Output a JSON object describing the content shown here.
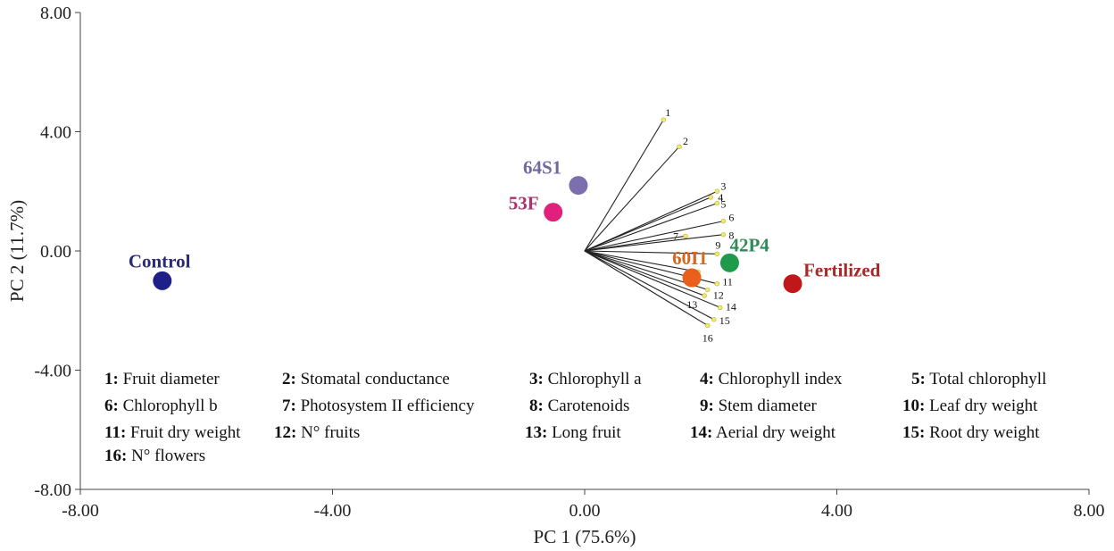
{
  "chart_data": {
    "type": "scatter",
    "subtype": "pca-biplot",
    "xlabel": "PC 1 (75.6%)",
    "ylabel": "PC 2 (11.7%)",
    "xlim": [
      -8,
      8
    ],
    "ylim": [
      -8,
      8
    ],
    "xticks": [
      "-8.00",
      "-4.00",
      "0.00",
      "4.00",
      "8.00"
    ],
    "yticks": [
      "8.00",
      "4.00",
      "0.00",
      "-4.00",
      "-8.00"
    ],
    "points": [
      {
        "label": "Control",
        "x": -6.7,
        "y": -1.0,
        "color": "#1f1f8a",
        "label_color": "#2a2a7a"
      },
      {
        "label": "64S1",
        "x": -0.1,
        "y": 2.2,
        "color": "#7b6fb0",
        "label_color": "#6e6aa0"
      },
      {
        "label": "53F",
        "x": -0.5,
        "y": 1.3,
        "color": "#e0207a",
        "label_color": "#b0306a"
      },
      {
        "label": "42P4",
        "x": 2.3,
        "y": -0.4,
        "color": "#1e9a4a",
        "label_color": "#2e8b57"
      },
      {
        "label": "60I1",
        "x": 1.7,
        "y": -0.9,
        "color": "#e8601c",
        "label_color": "#d2691e"
      },
      {
        "label": "Fertilized",
        "x": 3.3,
        "y": -1.1,
        "color": "#c01818",
        "label_color": "#a52a2a"
      }
    ],
    "vectors": [
      {
        "id": "1",
        "x": 1.25,
        "y": 4.4
      },
      {
        "id": "2",
        "x": 1.5,
        "y": 3.5
      },
      {
        "id": "3",
        "x": 2.1,
        "y": 2.0
      },
      {
        "id": "4",
        "x": 2.0,
        "y": 1.8
      },
      {
        "id": "5",
        "x": 2.1,
        "y": 1.6
      },
      {
        "id": "6",
        "x": 2.2,
        "y": 1.0
      },
      {
        "id": "7",
        "x": 1.6,
        "y": 0.5
      },
      {
        "id": "8",
        "x": 2.2,
        "y": 0.55
      },
      {
        "id": "9",
        "x": 2.1,
        "y": -0.1
      },
      {
        "id": "10",
        "x": 1.8,
        "y": -0.7
      },
      {
        "id": "11",
        "x": 2.1,
        "y": -1.1
      },
      {
        "id": "12",
        "x": 1.95,
        "y": -1.3
      },
      {
        "id": "13",
        "x": 1.9,
        "y": -1.5
      },
      {
        "id": "14",
        "x": 2.15,
        "y": -1.9
      },
      {
        "id": "15",
        "x": 2.05,
        "y": -2.3
      },
      {
        "id": "16",
        "x": 1.95,
        "y": -2.5
      }
    ],
    "legend": [
      {
        "num": "1:",
        "text": "Fruit diameter"
      },
      {
        "num": "2:",
        "text": "Stomatal conductance"
      },
      {
        "num": "3:",
        "text": "Chlorophyll a"
      },
      {
        "num": "4:",
        "text": "Chlorophyll index"
      },
      {
        "num": "5:",
        "text": "Total chlorophyll"
      },
      {
        "num": "6:",
        "text": "Chlorophyll b"
      },
      {
        "num": "7:",
        "text": "Photosystem II efficiency"
      },
      {
        "num": "8:",
        "text": "Carotenoids"
      },
      {
        "num": "9:",
        "text": "Stem diameter"
      },
      {
        "num": "10:",
        "text": "Leaf dry weight"
      },
      {
        "num": "11:",
        "text": "Fruit dry weight"
      },
      {
        "num": "12:",
        "text": "N° fruits"
      },
      {
        "num": "13:",
        "text": "Long fruit"
      },
      {
        "num": "14:",
        "text": "Aerial dry weight"
      },
      {
        "num": "15:",
        "text": "Root dry weight"
      },
      {
        "num": "16:",
        "text": "N° flowers"
      }
    ]
  }
}
